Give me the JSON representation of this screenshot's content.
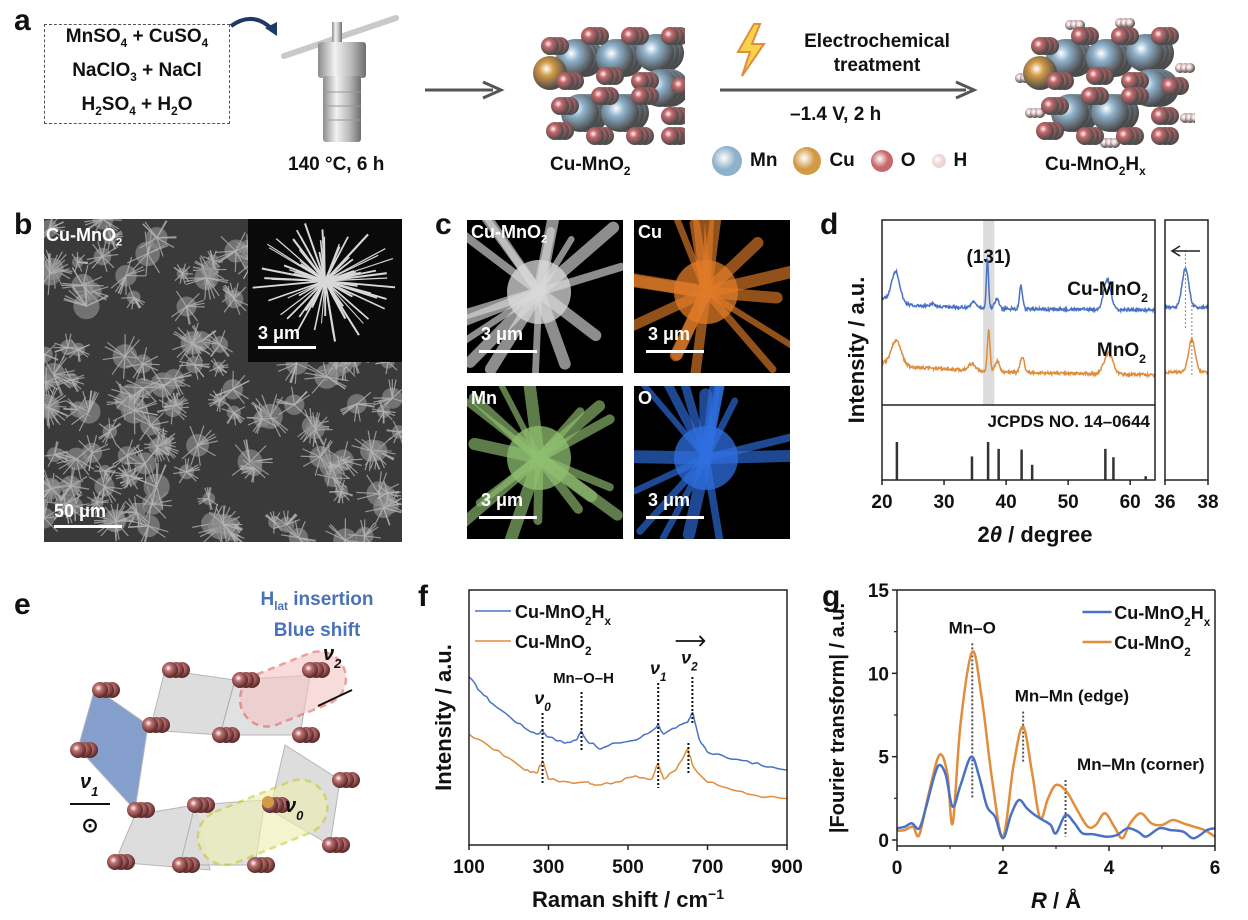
{
  "panels": {
    "a": {
      "label": "a",
      "recipe_lines": [
        {
          "parts": [
            [
              "MnSO",
              "4"
            ],
            [
              " + CuSO",
              "4"
            ]
          ]
        },
        {
          "parts": [
            [
              "NaClO",
              "3"
            ],
            [
              " + NaCl",
              ""
            ]
          ]
        },
        {
          "parts": [
            [
              "H",
              "2"
            ],
            [
              "SO",
              "4"
            ],
            [
              " + H",
              "2"
            ],
            [
              "O",
              ""
            ]
          ]
        }
      ],
      "autoclave_condition": "140 °C, 6 h",
      "product1": {
        "main": "Cu-MnO",
        "sub": "2",
        "suffix": "",
        "suffix_sub": ""
      },
      "step2_top_line1": "Electrochemical",
      "step2_top_line2": "treatment",
      "step2_bottom": "–1.4 V, 2 h",
      "product2": {
        "main": "Cu-MnO",
        "sub": "2",
        "suffix": "H",
        "suffix_sub": "x"
      },
      "legend": [
        {
          "symbol": "Mn",
          "color": "#8fb2cc"
        },
        {
          "symbol": "Cu",
          "color": "#d39a45"
        },
        {
          "symbol": "O",
          "color": "#c8686c"
        },
        {
          "symbol": "H",
          "color": "#f0d4d4"
        }
      ]
    },
    "b": {
      "label": "b",
      "title_main": "Cu-MnO",
      "title_sub": "2",
      "scale_main": "50 μm",
      "scale_inset": "3 μm"
    },
    "c": {
      "label": "c",
      "maps": [
        {
          "title_main": "Cu-MnO",
          "title_sub": "2",
          "scale": "3 μm",
          "color": "#d9d9d9"
        },
        {
          "title_main": "Cu",
          "title_sub": "",
          "scale": "3 μm",
          "color": "#e07b28"
        },
        {
          "title_main": "Mn",
          "title_sub": "",
          "scale": "3 μm",
          "color": "#8fbf70"
        },
        {
          "title_main": "O",
          "title_sub": "",
          "scale": "3 μm",
          "color": "#2f6fe0"
        }
      ]
    },
    "e": {
      "label": "e",
      "annotation_line1_main": "H",
      "annotation_line1_sub": "lat",
      "annotation_line1_rest": " insertion",
      "annotation_line2": "Blue shift",
      "modes": [
        {
          "nu": "ν",
          "sub": "0"
        },
        {
          "nu": "ν",
          "sub": "1"
        },
        {
          "nu": "ν",
          "sub": "2"
        }
      ],
      "out_of_plane_symbol": "⊙",
      "annotation_color": "#4a72b8"
    }
  },
  "chart_data": [
    {
      "id": "d",
      "panel_label": "d",
      "type": "line",
      "title": "",
      "xlabel": "2θ / degree",
      "ylabel": "Intensity / a.u.",
      "xlim": [
        20,
        64
      ],
      "x_ticks": [
        20,
        30,
        40,
        50,
        60
      ],
      "highlight_band": {
        "x0": 36.3,
        "x1": 38.1,
        "label": "(131)"
      },
      "series": [
        {
          "name": "Cu-MnO2",
          "label_main": "Cu-MnO",
          "label_sub": "2",
          "color": "#4a72c4",
          "offset": 1.0,
          "peaks": [
            [
              22.2,
              0.55,
              0.9
            ],
            [
              34.8,
              0.12,
              0.6
            ],
            [
              37.0,
              0.9,
              0.25
            ],
            [
              38.5,
              0.18,
              0.5
            ],
            [
              42.4,
              0.42,
              0.35
            ],
            [
              56.3,
              0.55,
              0.8
            ],
            [
              28.2,
              0.05,
              0.4
            ]
          ],
          "baseline": [
            [
              20,
              0.22
            ],
            [
              25,
              0.08
            ],
            [
              40,
              0.02
            ],
            [
              64,
              0.0
            ]
          ]
        },
        {
          "name": "MnO2",
          "label_main": "MnO",
          "label_sub": "2",
          "color": "#e08d3c",
          "offset": 0.0,
          "peaks": [
            [
              22.3,
              0.45,
              1.1
            ],
            [
              34.5,
              0.12,
              0.8
            ],
            [
              37.2,
              0.75,
              0.3
            ],
            [
              38.6,
              0.2,
              0.5
            ],
            [
              42.6,
              0.3,
              0.45
            ],
            [
              56.5,
              0.38,
              1.0
            ]
          ],
          "baseline": [
            [
              20,
              0.22
            ],
            [
              25,
              0.14
            ],
            [
              40,
              0.05
            ],
            [
              64,
              0.0
            ]
          ]
        }
      ],
      "reference": {
        "label": "JCPDS NO. 14–0644",
        "lines": [
          [
            22.4,
            1.0
          ],
          [
            34.5,
            0.62
          ],
          [
            37.1,
            1.0
          ],
          [
            38.8,
            0.82
          ],
          [
            42.5,
            0.8
          ],
          [
            44.2,
            0.4
          ],
          [
            56.0,
            0.82
          ],
          [
            57.3,
            0.6
          ],
          [
            62.5,
            0.1
          ]
        ]
      },
      "inset": {
        "xlim": [
          36,
          38
        ],
        "x_ticks": [
          36,
          38
        ],
        "peak_positions": {
          "Cu-MnO2": 36.95,
          "MnO2": 37.25
        },
        "arrow": "left"
      }
    },
    {
      "id": "f",
      "panel_label": "f",
      "type": "line",
      "title": "",
      "xlabel": "Raman shift / cm⁻¹",
      "ylabel": "Intensity / a.u.",
      "xlim": [
        100,
        900
      ],
      "x_ticks": [
        100,
        300,
        500,
        700,
        900
      ],
      "series": [
        {
          "name": "Cu-MnO2Hx",
          "label_main": "Cu-MnO",
          "label_sub": "2",
          "label_suffix": "H",
          "label_suffix_sub": "x",
          "color": "#4a72c4",
          "points": [
            [
              100,
              8.1
            ],
            [
              130,
              7.6
            ],
            [
              160,
              7.2
            ],
            [
              200,
              6.8
            ],
            [
              240,
              6.4
            ],
            [
              270,
              6.2
            ],
            [
              285,
              6.3
            ],
            [
              300,
              6.1
            ],
            [
              340,
              5.9
            ],
            [
              370,
              6.0
            ],
            [
              383,
              6.3
            ],
            [
              395,
              6.0
            ],
            [
              430,
              5.7
            ],
            [
              470,
              5.9
            ],
            [
              520,
              6.0
            ],
            [
              560,
              6.3
            ],
            [
              575,
              6.5
            ],
            [
              590,
              6.2
            ],
            [
              620,
              6.4
            ],
            [
              650,
              6.6
            ],
            [
              663,
              6.9
            ],
            [
              680,
              6.0
            ],
            [
              700,
              5.6
            ],
            [
              750,
              5.4
            ],
            [
              800,
              5.3
            ],
            [
              850,
              5.1
            ],
            [
              900,
              5.0
            ]
          ]
        },
        {
          "name": "Cu-MnO2",
          "label_main": "Cu-MnO",
          "label_sub": "2",
          "label_suffix": "",
          "label_suffix_sub": "",
          "color": "#e08d3c",
          "points": [
            [
              100,
              6.2
            ],
            [
              150,
              5.8
            ],
            [
              200,
              5.4
            ],
            [
              240,
              5.0
            ],
            [
              270,
              4.9
            ],
            [
              285,
              5.3
            ],
            [
              300,
              4.7
            ],
            [
              350,
              4.6
            ],
            [
              400,
              4.6
            ],
            [
              420,
              4.5
            ],
            [
              470,
              4.6
            ],
            [
              520,
              4.8
            ],
            [
              560,
              4.7
            ],
            [
              575,
              5.2
            ],
            [
              590,
              4.7
            ],
            [
              620,
              5.0
            ],
            [
              650,
              5.7
            ],
            [
              665,
              5.1
            ],
            [
              700,
              4.6
            ],
            [
              750,
              4.4
            ],
            [
              800,
              4.2
            ],
            [
              850,
              4.1
            ],
            [
              900,
              4.05
            ]
          ]
        }
      ],
      "annotations": [
        {
          "text": "ν",
          "sub": "0",
          "x": 285
        },
        {
          "text": "Mn–O–H",
          "sub": "",
          "x": 383
        },
        {
          "text": "ν",
          "sub": "1",
          "x": 576
        },
        {
          "text": "ν",
          "sub": "2",
          "x": 662
        }
      ],
      "v2_shift": {
        "from": 652,
        "to": 662,
        "arrow": "right"
      },
      "legend_position": "top-left"
    },
    {
      "id": "g",
      "panel_label": "g",
      "type": "line",
      "title": "",
      "xlabel": "R / Å",
      "ylabel": "|Fourier transform| / a.u.",
      "xlim": [
        0,
        6
      ],
      "ylim": [
        0,
        15
      ],
      "x_ticks": [
        0,
        2,
        4,
        6
      ],
      "y_ticks": [
        0,
        5,
        10,
        15
      ],
      "series": [
        {
          "name": "Cu-MnO2Hx",
          "label_main": "Cu-MnO",
          "label_sub": "2",
          "label_suffix": "H",
          "label_suffix_sub": "x",
          "color": "#4a72c4",
          "points": [
            [
              0,
              0.7
            ],
            [
              0.15,
              0.8
            ],
            [
              0.28,
              1.0
            ],
            [
              0.42,
              0.7
            ],
            [
              0.55,
              2.0
            ],
            [
              0.7,
              3.8
            ],
            [
              0.8,
              4.5
            ],
            [
              0.92,
              3.9
            ],
            [
              1.05,
              2.0
            ],
            [
              1.2,
              3.3
            ],
            [
              1.4,
              5.0
            ],
            [
              1.55,
              3.8
            ],
            [
              1.7,
              2.0
            ],
            [
              1.85,
              1.4
            ],
            [
              2.0,
              0.1
            ],
            [
              2.15,
              1.5
            ],
            [
              2.3,
              2.4
            ],
            [
              2.45,
              1.9
            ],
            [
              2.6,
              1.5
            ],
            [
              2.75,
              1.2
            ],
            [
              2.9,
              0.9
            ],
            [
              3.0,
              0.4
            ],
            [
              3.18,
              1.5
            ],
            [
              3.35,
              1.0
            ],
            [
              3.5,
              0.4
            ],
            [
              3.7,
              0.35
            ],
            [
              3.95,
              0.2
            ],
            [
              4.15,
              0.3
            ],
            [
              4.35,
              0.7
            ],
            [
              4.55,
              0.5
            ],
            [
              4.7,
              0.2
            ],
            [
              4.95,
              0.7
            ],
            [
              5.15,
              0.6
            ],
            [
              5.4,
              0.5
            ],
            [
              5.6,
              0.1
            ],
            [
              5.85,
              0.6
            ],
            [
              6.0,
              0.7
            ]
          ]
        },
        {
          "name": "Cu-MnO2",
          "label_main": "Cu-MnO",
          "label_sub": "2",
          "label_suffix": "",
          "label_suffix_sub": "",
          "color": "#e08d3c",
          "points": [
            [
              0,
              0.55
            ],
            [
              0.15,
              0.6
            ],
            [
              0.3,
              0.8
            ],
            [
              0.42,
              0.3
            ],
            [
              0.6,
              2.8
            ],
            [
              0.8,
              5.1
            ],
            [
              0.95,
              4.0
            ],
            [
              1.05,
              1.0
            ],
            [
              1.2,
              7.0
            ],
            [
              1.42,
              11.3
            ],
            [
              1.6,
              8.5
            ],
            [
              1.8,
              3.5
            ],
            [
              2.0,
              0.2
            ],
            [
              2.2,
              4.5
            ],
            [
              2.38,
              6.8
            ],
            [
              2.55,
              4.0
            ],
            [
              2.7,
              1.3
            ],
            [
              2.85,
              2.5
            ],
            [
              3.0,
              3.3
            ],
            [
              3.2,
              2.9
            ],
            [
              3.4,
              1.8
            ],
            [
              3.6,
              0.8
            ],
            [
              3.75,
              0.9
            ],
            [
              3.92,
              1.6
            ],
            [
              4.1,
              0.8
            ],
            [
              4.25,
              0.1
            ],
            [
              4.4,
              1.0
            ],
            [
              4.6,
              1.6
            ],
            [
              4.8,
              1.0
            ],
            [
              5.0,
              0.9
            ],
            [
              5.2,
              1.2
            ],
            [
              5.4,
              1.0
            ],
            [
              5.6,
              0.8
            ],
            [
              5.8,
              0.6
            ],
            [
              6.0,
              0.2
            ]
          ]
        }
      ],
      "annotations": [
        {
          "text": "Mn–O",
          "x": 1.42,
          "y_top": 11.8,
          "y_bot": 2.5
        },
        {
          "text": "Mn–Mn (edge)",
          "x": 2.38,
          "y_top": 7.7,
          "y_bot": 4.6
        },
        {
          "text": "Mn–Mn (corner)",
          "x": 3.18,
          "y_top": 3.6,
          "y_bot": 0.2
        }
      ],
      "legend_position": "top-right"
    }
  ]
}
